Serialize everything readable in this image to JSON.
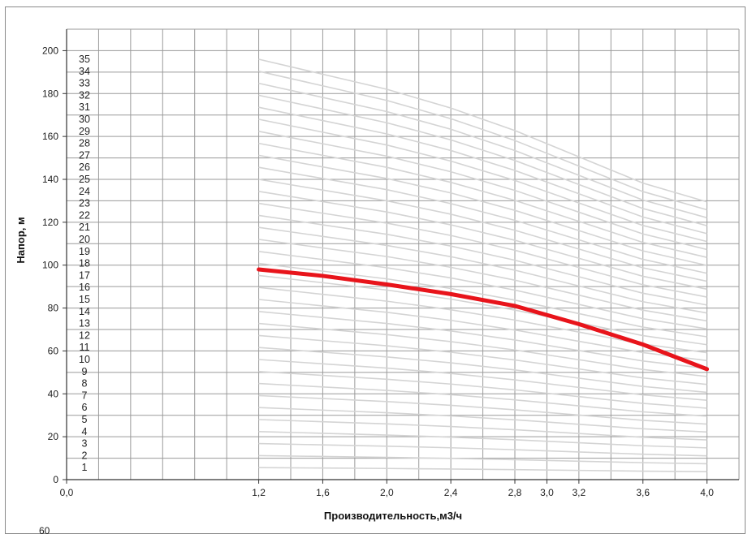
{
  "chart_data": {
    "type": "line",
    "title": "",
    "xlabel": "Производительность,м3/ч",
    "ylabel": "Напор, м",
    "xlim": [
      0.0,
      4.2
    ],
    "ylim": [
      0,
      210
    ],
    "grid": true,
    "x_tick_step": 0.2,
    "x_tick_labels": [
      {
        "x": 0.0,
        "label": "0,0"
      },
      {
        "x": 1.2,
        "label": "1,2"
      },
      {
        "x": 1.6,
        "label": "1,6"
      },
      {
        "x": 2.0,
        "label": "2,0"
      },
      {
        "x": 2.4,
        "label": "2,4"
      },
      {
        "x": 2.8,
        "label": "2,8"
      },
      {
        "x": 3.0,
        "label": "3,0"
      },
      {
        "x": 3.2,
        "label": "3,2"
      },
      {
        "x": 3.6,
        "label": "3,6"
      },
      {
        "x": 4.0,
        "label": "4,0"
      }
    ],
    "y_tick_step": 10,
    "y_tick_labels": [
      {
        "y": 0,
        "label": "0"
      },
      {
        "y": 20,
        "label": "20"
      },
      {
        "y": 40,
        "label": "40"
      },
      {
        "y": 60,
        "label": "60"
      },
      {
        "y": 80,
        "label": "80"
      },
      {
        "y": 100,
        "label": "100"
      },
      {
        "y": 120,
        "label": "120"
      },
      {
        "y": 140,
        "label": "140"
      },
      {
        "y": 160,
        "label": "160"
      },
      {
        "y": 180,
        "label": "180"
      },
      {
        "y": 200,
        "label": "200"
      }
    ],
    "x": [
      1.2,
      1.6,
      2.0,
      2.4,
      2.8,
      3.2,
      3.6,
      4.0
    ],
    "curve_labels": [
      "1",
      "2",
      "3",
      "4",
      "5",
      "6",
      "7",
      "8",
      "9",
      "10",
      "11",
      "12",
      "13",
      "14",
      "15",
      "16",
      "17",
      "18",
      "19",
      "20",
      "21",
      "22",
      "23",
      "24",
      "25",
      "26",
      "27",
      "28",
      "29",
      "30",
      "31",
      "32",
      "33",
      "34",
      "35"
    ],
    "base_curve": {
      "description_values_per_stage_m": [
        5.6,
        5.4,
        5.2,
        4.95,
        4.65,
        4.3,
        3.95,
        3.7
      ]
    },
    "series": [
      {
        "label": "17",
        "highlight": true,
        "color": "#e8141b",
        "values": [
          98,
          95,
          91,
          86.5,
          81,
          72.5,
          63,
          51.5
        ]
      }
    ],
    "grid_color": "#9a9a9a",
    "curve_color": "#d4d4d4",
    "tail_label": "60"
  }
}
